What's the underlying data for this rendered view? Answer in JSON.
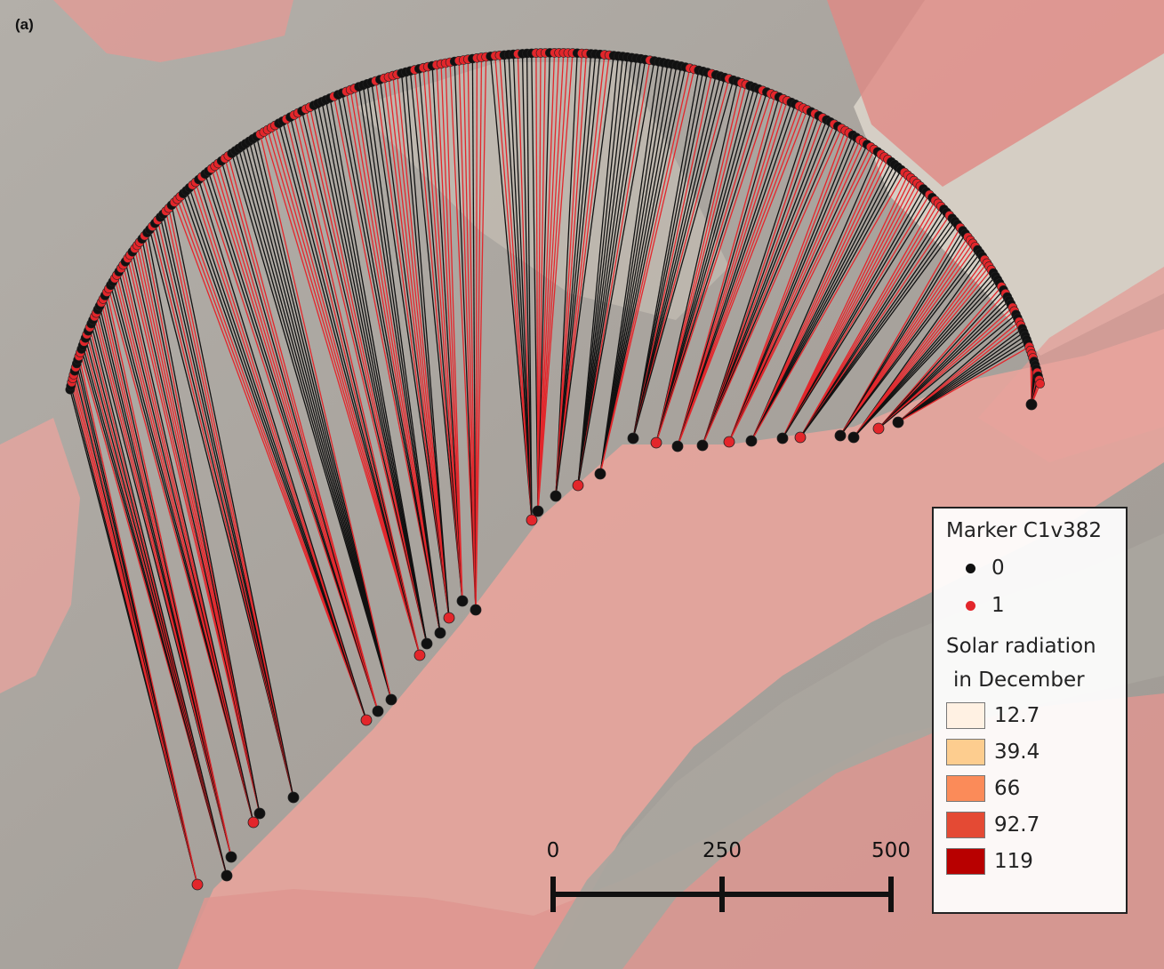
{
  "panel_label": "(a)",
  "legend": {
    "marker_title": "Marker C1v382",
    "markers": [
      {
        "label": "0",
        "color": "#111111"
      },
      {
        "label": "1",
        "color": "#e3262b"
      }
    ],
    "radiation_title_1": "Solar radiation",
    "radiation_title_2": "in December",
    "classes": [
      {
        "label": "12.7",
        "color": "#fff1e3"
      },
      {
        "label": "39.4",
        "color": "#fdcd8f"
      },
      {
        "label": "66",
        "color": "#fb8b59"
      },
      {
        "label": "92.7",
        "color": "#e44a34"
      },
      {
        "label": "119",
        "color": "#b80000"
      }
    ]
  },
  "scale_bar": {
    "labels": [
      "0",
      "250",
      "500"
    ]
  },
  "colors": {
    "background": "#a9a5a0",
    "valley": "#e7a39c",
    "black_marker": "#111111",
    "red_marker": "#e3262b"
  }
}
